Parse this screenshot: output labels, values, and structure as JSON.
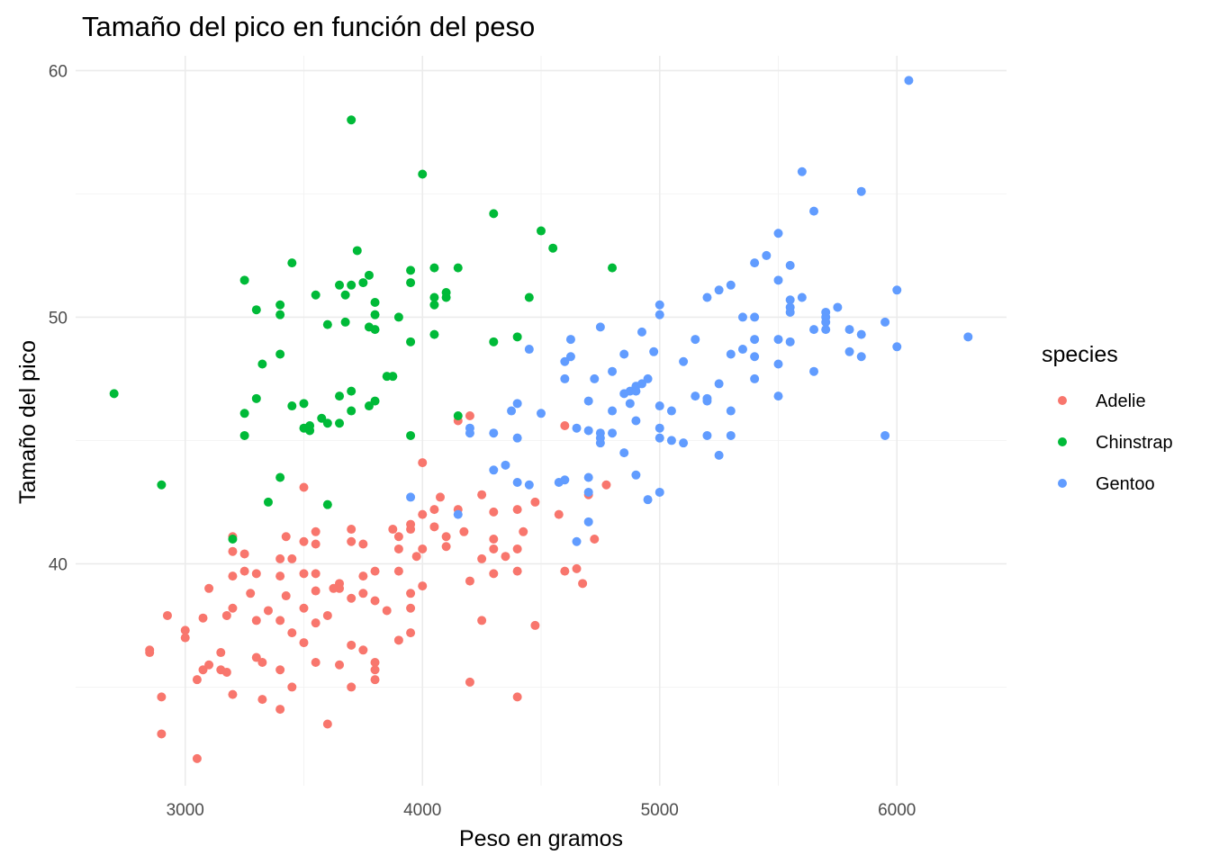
{
  "chart_data": {
    "type": "scatter",
    "title": "Tamaño del pico en función del peso",
    "xlabel": "Peso en gramos",
    "ylabel": "Tamaño del pico",
    "xlim": [
      2538,
      6462
    ],
    "ylim": [
      31.0,
      60.6
    ],
    "x_ticks": [
      3000,
      4000,
      5000,
      6000
    ],
    "x_ticks_minor": [
      3500,
      4500,
      5500
    ],
    "y_ticks": [
      40,
      50,
      60
    ],
    "y_ticks_minor": [
      35,
      45,
      55
    ],
    "grid": true,
    "legend": {
      "title": "species",
      "position": "right",
      "items": [
        {
          "label": "Adelie",
          "color": "#F8766D"
        },
        {
          "label": "Chinstrap",
          "color": "#00BA38"
        },
        {
          "label": "Gentoo",
          "color": "#619CFF"
        }
      ]
    },
    "series": [
      {
        "name": "Adelie",
        "color": "#F8766D",
        "points": [
          [
            3050,
            32.1
          ],
          [
            2900,
            33.1
          ],
          [
            3600,
            33.5
          ],
          [
            2900,
            34.6
          ],
          [
            3325,
            34.5
          ],
          [
            3400,
            34.1
          ],
          [
            3200,
            34.7
          ],
          [
            3050,
            35.3
          ],
          [
            3075,
            35.7
          ],
          [
            3150,
            35.7
          ],
          [
            3175,
            35.6
          ],
          [
            3325,
            36.0
          ],
          [
            3450,
            35.0
          ],
          [
            3700,
            35.0
          ],
          [
            4200,
            35.2
          ],
          [
            4400,
            34.6
          ],
          [
            2850,
            36.4
          ],
          [
            2850,
            36.5
          ],
          [
            3000,
            37.0
          ],
          [
            3000,
            37.3
          ],
          [
            3100,
            35.9
          ],
          [
            3150,
            36.4
          ],
          [
            3300,
            36.2
          ],
          [
            3400,
            35.7
          ],
          [
            3500,
            36.8
          ],
          [
            3550,
            36.0
          ],
          [
            3650,
            35.9
          ],
          [
            3800,
            35.7
          ],
          [
            3800,
            35.3
          ],
          [
            2925,
            37.9
          ],
          [
            3075,
            37.8
          ],
          [
            3175,
            37.9
          ],
          [
            3200,
            38.2
          ],
          [
            3300,
            37.7
          ],
          [
            3400,
            37.7
          ],
          [
            3450,
            37.2
          ],
          [
            3550,
            37.6
          ],
          [
            3600,
            37.9
          ],
          [
            3700,
            36.7
          ],
          [
            3750,
            36.5
          ],
          [
            3800,
            36.0
          ],
          [
            3900,
            36.9
          ],
          [
            3950,
            37.2
          ],
          [
            3100,
            39.0
          ],
          [
            3275,
            38.8
          ],
          [
            3350,
            38.1
          ],
          [
            3425,
            38.7
          ],
          [
            3500,
            38.2
          ],
          [
            3550,
            38.9
          ],
          [
            3650,
            39.0
          ],
          [
            3650,
            39.2
          ],
          [
            3700,
            38.6
          ],
          [
            3750,
            38.8
          ],
          [
            3800,
            38.5
          ],
          [
            3850,
            38.1
          ],
          [
            3950,
            38.8
          ],
          [
            3950,
            38.2
          ],
          [
            4250,
            37.7
          ],
          [
            4475,
            37.5
          ],
          [
            3200,
            39.5
          ],
          [
            3250,
            39.7
          ],
          [
            3300,
            39.6
          ],
          [
            3400,
            39.5
          ],
          [
            3500,
            39.6
          ],
          [
            3550,
            39.6
          ],
          [
            3625,
            39.0
          ],
          [
            3750,
            39.5
          ],
          [
            3800,
            39.7
          ],
          [
            3900,
            39.7
          ],
          [
            4000,
            39.1
          ],
          [
            4200,
            39.3
          ],
          [
            4300,
            39.6
          ],
          [
            4400,
            39.7
          ],
          [
            4600,
            39.7
          ],
          [
            4650,
            39.8
          ],
          [
            4675,
            39.2
          ],
          [
            3200,
            40.5
          ],
          [
            3250,
            40.4
          ],
          [
            3400,
            40.2
          ],
          [
            3450,
            40.2
          ],
          [
            3500,
            40.9
          ],
          [
            3550,
            40.8
          ],
          [
            3700,
            40.9
          ],
          [
            3750,
            40.8
          ],
          [
            3900,
            40.6
          ],
          [
            3975,
            40.3
          ],
          [
            4000,
            40.6
          ],
          [
            4100,
            40.7
          ],
          [
            4250,
            40.2
          ],
          [
            4300,
            40.6
          ],
          [
            4350,
            40.3
          ],
          [
            4400,
            40.6
          ],
          [
            3200,
            41.1
          ],
          [
            3425,
            41.1
          ],
          [
            3550,
            41.3
          ],
          [
            3700,
            41.4
          ],
          [
            3900,
            41.1
          ],
          [
            3950,
            41.4
          ],
          [
            4050,
            41.5
          ],
          [
            4100,
            41.1
          ],
          [
            4175,
            41.3
          ],
          [
            4300,
            41.0
          ],
          [
            4425,
            41.3
          ],
          [
            4725,
            41.0
          ],
          [
            3875,
            41.4
          ],
          [
            3950,
            41.6
          ],
          [
            4000,
            42.0
          ],
          [
            4050,
            42.2
          ],
          [
            4150,
            42.2
          ],
          [
            4300,
            42.1
          ],
          [
            4400,
            42.2
          ],
          [
            4575,
            42.0
          ],
          [
            4475,
            42.5
          ],
          [
            4075,
            42.7
          ],
          [
            4250,
            42.8
          ],
          [
            4700,
            42.8
          ],
          [
            4775,
            43.2
          ],
          [
            3500,
            43.1
          ],
          [
            4000,
            44.1
          ],
          [
            4150,
            45.8
          ],
          [
            4200,
            46.0
          ],
          [
            4600,
            45.6
          ]
        ]
      },
      {
        "name": "Chinstrap",
        "color": "#00BA38",
        "points": [
          [
            2700,
            46.9
          ],
          [
            2900,
            43.2
          ],
          [
            3200,
            41.0
          ],
          [
            3250,
            45.2
          ],
          [
            3250,
            46.1
          ],
          [
            3300,
            46.7
          ],
          [
            3350,
            42.5
          ],
          [
            3400,
            43.5
          ],
          [
            3450,
            46.4
          ],
          [
            3500,
            45.5
          ],
          [
            3500,
            46.5
          ],
          [
            3525,
            45.4
          ],
          [
            3525,
            45.6
          ],
          [
            3575,
            45.9
          ],
          [
            3600,
            45.7
          ],
          [
            3600,
            42.4
          ],
          [
            3650,
            45.7
          ],
          [
            3650,
            46.8
          ],
          [
            3700,
            46.2
          ],
          [
            3700,
            47.0
          ],
          [
            3775,
            46.4
          ],
          [
            3800,
            46.6
          ],
          [
            3850,
            47.6
          ],
          [
            3875,
            47.6
          ],
          [
            3950,
            45.2
          ],
          [
            4150,
            46.0
          ],
          [
            3250,
            51.5
          ],
          [
            3300,
            50.3
          ],
          [
            3325,
            48.1
          ],
          [
            3400,
            48.5
          ],
          [
            3400,
            50.1
          ],
          [
            3400,
            50.5
          ],
          [
            3450,
            52.2
          ],
          [
            3550,
            50.9
          ],
          [
            3600,
            49.7
          ],
          [
            3650,
            51.3
          ],
          [
            3675,
            50.9
          ],
          [
            3675,
            49.8
          ],
          [
            3700,
            51.3
          ],
          [
            3725,
            52.7
          ],
          [
            3750,
            51.4
          ],
          [
            3775,
            51.7
          ],
          [
            3775,
            49.6
          ],
          [
            3800,
            49.5
          ],
          [
            3800,
            50.6
          ],
          [
            3800,
            50.1
          ],
          [
            3900,
            50.0
          ],
          [
            3950,
            51.9
          ],
          [
            3950,
            51.4
          ],
          [
            3950,
            49.0
          ],
          [
            4050,
            52.0
          ],
          [
            4050,
            50.5
          ],
          [
            4050,
            50.8
          ],
          [
            4050,
            49.3
          ],
          [
            4100,
            50.8
          ],
          [
            4100,
            51.0
          ],
          [
            4150,
            52.0
          ],
          [
            4300,
            49.0
          ],
          [
            4400,
            49.2
          ],
          [
            4450,
            50.8
          ],
          [
            4500,
            53.5
          ],
          [
            4550,
            52.8
          ],
          [
            4800,
            52.0
          ],
          [
            4300,
            54.2
          ],
          [
            4000,
            55.8
          ],
          [
            3700,
            58.0
          ]
        ]
      },
      {
        "name": "Gentoo",
        "color": "#619CFF",
        "points": [
          [
            3950,
            42.7
          ],
          [
            4150,
            42.0
          ],
          [
            4200,
            45.3
          ],
          [
            4200,
            45.5
          ],
          [
            4300,
            45.3
          ],
          [
            4300,
            43.8
          ],
          [
            4350,
            44.0
          ],
          [
            4375,
            46.2
          ],
          [
            4400,
            46.5
          ],
          [
            4400,
            45.1
          ],
          [
            4400,
            43.3
          ],
          [
            4450,
            48.7
          ],
          [
            4450,
            43.2
          ],
          [
            4500,
            46.1
          ],
          [
            4575,
            43.3
          ],
          [
            4600,
            47.5
          ],
          [
            4600,
            48.2
          ],
          [
            4600,
            43.4
          ],
          [
            4625,
            48.4
          ],
          [
            4625,
            49.1
          ],
          [
            4650,
            40.9
          ],
          [
            4650,
            45.5
          ],
          [
            4700,
            46.6
          ],
          [
            4700,
            45.4
          ],
          [
            4700,
            43.5
          ],
          [
            4700,
            42.9
          ],
          [
            4700,
            41.7
          ],
          [
            4725,
            47.5
          ],
          [
            4750,
            49.6
          ],
          [
            4750,
            45.1
          ],
          [
            4750,
            45.3
          ],
          [
            4750,
            44.9
          ],
          [
            4800,
            47.8
          ],
          [
            4800,
            46.2
          ],
          [
            4800,
            45.3
          ],
          [
            4850,
            48.5
          ],
          [
            4850,
            46.9
          ],
          [
            4850,
            44.5
          ],
          [
            4875,
            47.0
          ],
          [
            4875,
            46.5
          ],
          [
            4900,
            47.0
          ],
          [
            4900,
            47.2
          ],
          [
            4900,
            45.8
          ],
          [
            4900,
            43.6
          ],
          [
            4925,
            49.4
          ],
          [
            4925,
            47.3
          ],
          [
            4950,
            47.5
          ],
          [
            4950,
            42.6
          ],
          [
            4975,
            48.6
          ],
          [
            5000,
            50.5
          ],
          [
            5000,
            50.1
          ],
          [
            5000,
            46.4
          ],
          [
            5000,
            45.5
          ],
          [
            5000,
            45.1
          ],
          [
            5000,
            42.9
          ],
          [
            5050,
            46.2
          ],
          [
            5050,
            45.0
          ],
          [
            5100,
            48.2
          ],
          [
            5100,
            44.9
          ],
          [
            5150,
            49.1
          ],
          [
            5150,
            46.8
          ],
          [
            5200,
            50.8
          ],
          [
            5200,
            46.6
          ],
          [
            5200,
            46.7
          ],
          [
            5200,
            45.2
          ],
          [
            5250,
            51.1
          ],
          [
            5250,
            47.3
          ],
          [
            5250,
            44.4
          ],
          [
            5300,
            51.3
          ],
          [
            5300,
            48.5
          ],
          [
            5300,
            46.2
          ],
          [
            5300,
            45.2
          ],
          [
            5350,
            50.0
          ],
          [
            5350,
            48.7
          ],
          [
            5400,
            52.2
          ],
          [
            5400,
            50.0
          ],
          [
            5400,
            49.1
          ],
          [
            5400,
            48.4
          ],
          [
            5400,
            47.5
          ],
          [
            5450,
            52.5
          ],
          [
            5500,
            53.4
          ],
          [
            5500,
            51.5
          ],
          [
            5500,
            49.1
          ],
          [
            5500,
            48.1
          ],
          [
            5500,
            46.8
          ],
          [
            5550,
            52.1
          ],
          [
            5550,
            50.7
          ],
          [
            5550,
            50.4
          ],
          [
            5550,
            50.2
          ],
          [
            5550,
            49.0
          ],
          [
            5600,
            55.9
          ],
          [
            5600,
            50.8
          ],
          [
            5650,
            54.3
          ],
          [
            5650,
            49.5
          ],
          [
            5650,
            47.8
          ],
          [
            5700,
            50.2
          ],
          [
            5700,
            50.0
          ],
          [
            5700,
            49.8
          ],
          [
            5700,
            49.5
          ],
          [
            5750,
            50.4
          ],
          [
            5800,
            49.5
          ],
          [
            5800,
            48.6
          ],
          [
            5850,
            55.1
          ],
          [
            5850,
            49.3
          ],
          [
            5850,
            48.4
          ],
          [
            5950,
            49.8
          ],
          [
            5950,
            45.2
          ],
          [
            6000,
            51.1
          ],
          [
            6000,
            48.8
          ],
          [
            6050,
            59.6
          ],
          [
            6300,
            49.2
          ]
        ]
      }
    ]
  }
}
